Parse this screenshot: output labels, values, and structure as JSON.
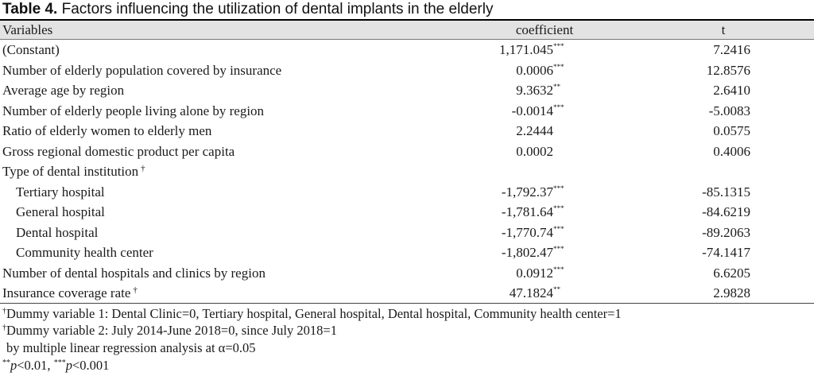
{
  "caption": {
    "label": "Table 4.",
    "text": "Factors influencing the utilization of dental implants in the elderly"
  },
  "columns": [
    "Variables",
    "coefficient",
    "t"
  ],
  "rows": [
    {
      "variable": "(Constant)",
      "coefficient": "1,171.045",
      "sig": "***",
      "t": "7.2416",
      "dagger": "",
      "indent": false
    },
    {
      "variable": "Number of elderly population covered by insurance",
      "coefficient": "0.0006",
      "sig": "***",
      "t": "12.8576",
      "dagger": "",
      "indent": false
    },
    {
      "variable": "Average age by region",
      "coefficient": "9.3632",
      "sig": "**",
      "t": "2.6410",
      "dagger": "",
      "indent": false
    },
    {
      "variable": "Number of elderly people living alone by region",
      "coefficient": "-0.0014",
      "sig": "***",
      "t": "-5.0083",
      "dagger": "",
      "indent": false
    },
    {
      "variable": "Ratio of elderly women to elderly men",
      "coefficient": "2.2444",
      "sig": "",
      "t": "0.0575",
      "dagger": "",
      "indent": false
    },
    {
      "variable": "Gross regional domestic product per capita",
      "coefficient": "0.0002",
      "sig": "",
      "t": "0.4006",
      "dagger": "",
      "indent": false
    },
    {
      "variable": "Type of dental institution",
      "coefficient": "",
      "sig": "",
      "t": "",
      "dagger": "†",
      "indent": false
    },
    {
      "variable": "Tertiary hospital",
      "coefficient": "-1,792.37",
      "sig": "***",
      "t": "-85.1315",
      "dagger": "",
      "indent": true
    },
    {
      "variable": "General hospital",
      "coefficient": "-1,781.64",
      "sig": "***",
      "t": "-84.6219",
      "dagger": "",
      "indent": true
    },
    {
      "variable": "Dental hospital",
      "coefficient": "-1,770.74",
      "sig": "***",
      "t": "-89.2063",
      "dagger": "",
      "indent": true
    },
    {
      "variable": "Community health center",
      "coefficient": "-1,802.47",
      "sig": "***",
      "t": "-74.1417",
      "dagger": "",
      "indent": true
    },
    {
      "variable": "Number of dental hospitals and clinics by region",
      "coefficient": "0.0912",
      "sig": "***",
      "t": "6.6205",
      "dagger": "",
      "indent": false
    },
    {
      "variable": "Insurance coverage rate",
      "coefficient": "47.1824",
      "sig": "**",
      "t": "2.9828",
      "dagger": "†",
      "indent": false
    }
  ],
  "notes": {
    "note1_mark": "†",
    "note1_text": "Dummy variable 1: Dental Clinic=0, Tertiary hospital, General hospital, Dental hospital, Community health center=1",
    "note2_mark": "†",
    "note2_text": "Dummy variable 2: July 2014-June 2018=0, since July 2018=1",
    "note3_text": "by multiple linear regression analysis at α=0.05",
    "note4_mark1": "**",
    "note4_p1": "p",
    "note4_text1": "<0.01, ",
    "note4_mark2": "***",
    "note4_p2": "p",
    "note4_text2": "<0.001"
  }
}
